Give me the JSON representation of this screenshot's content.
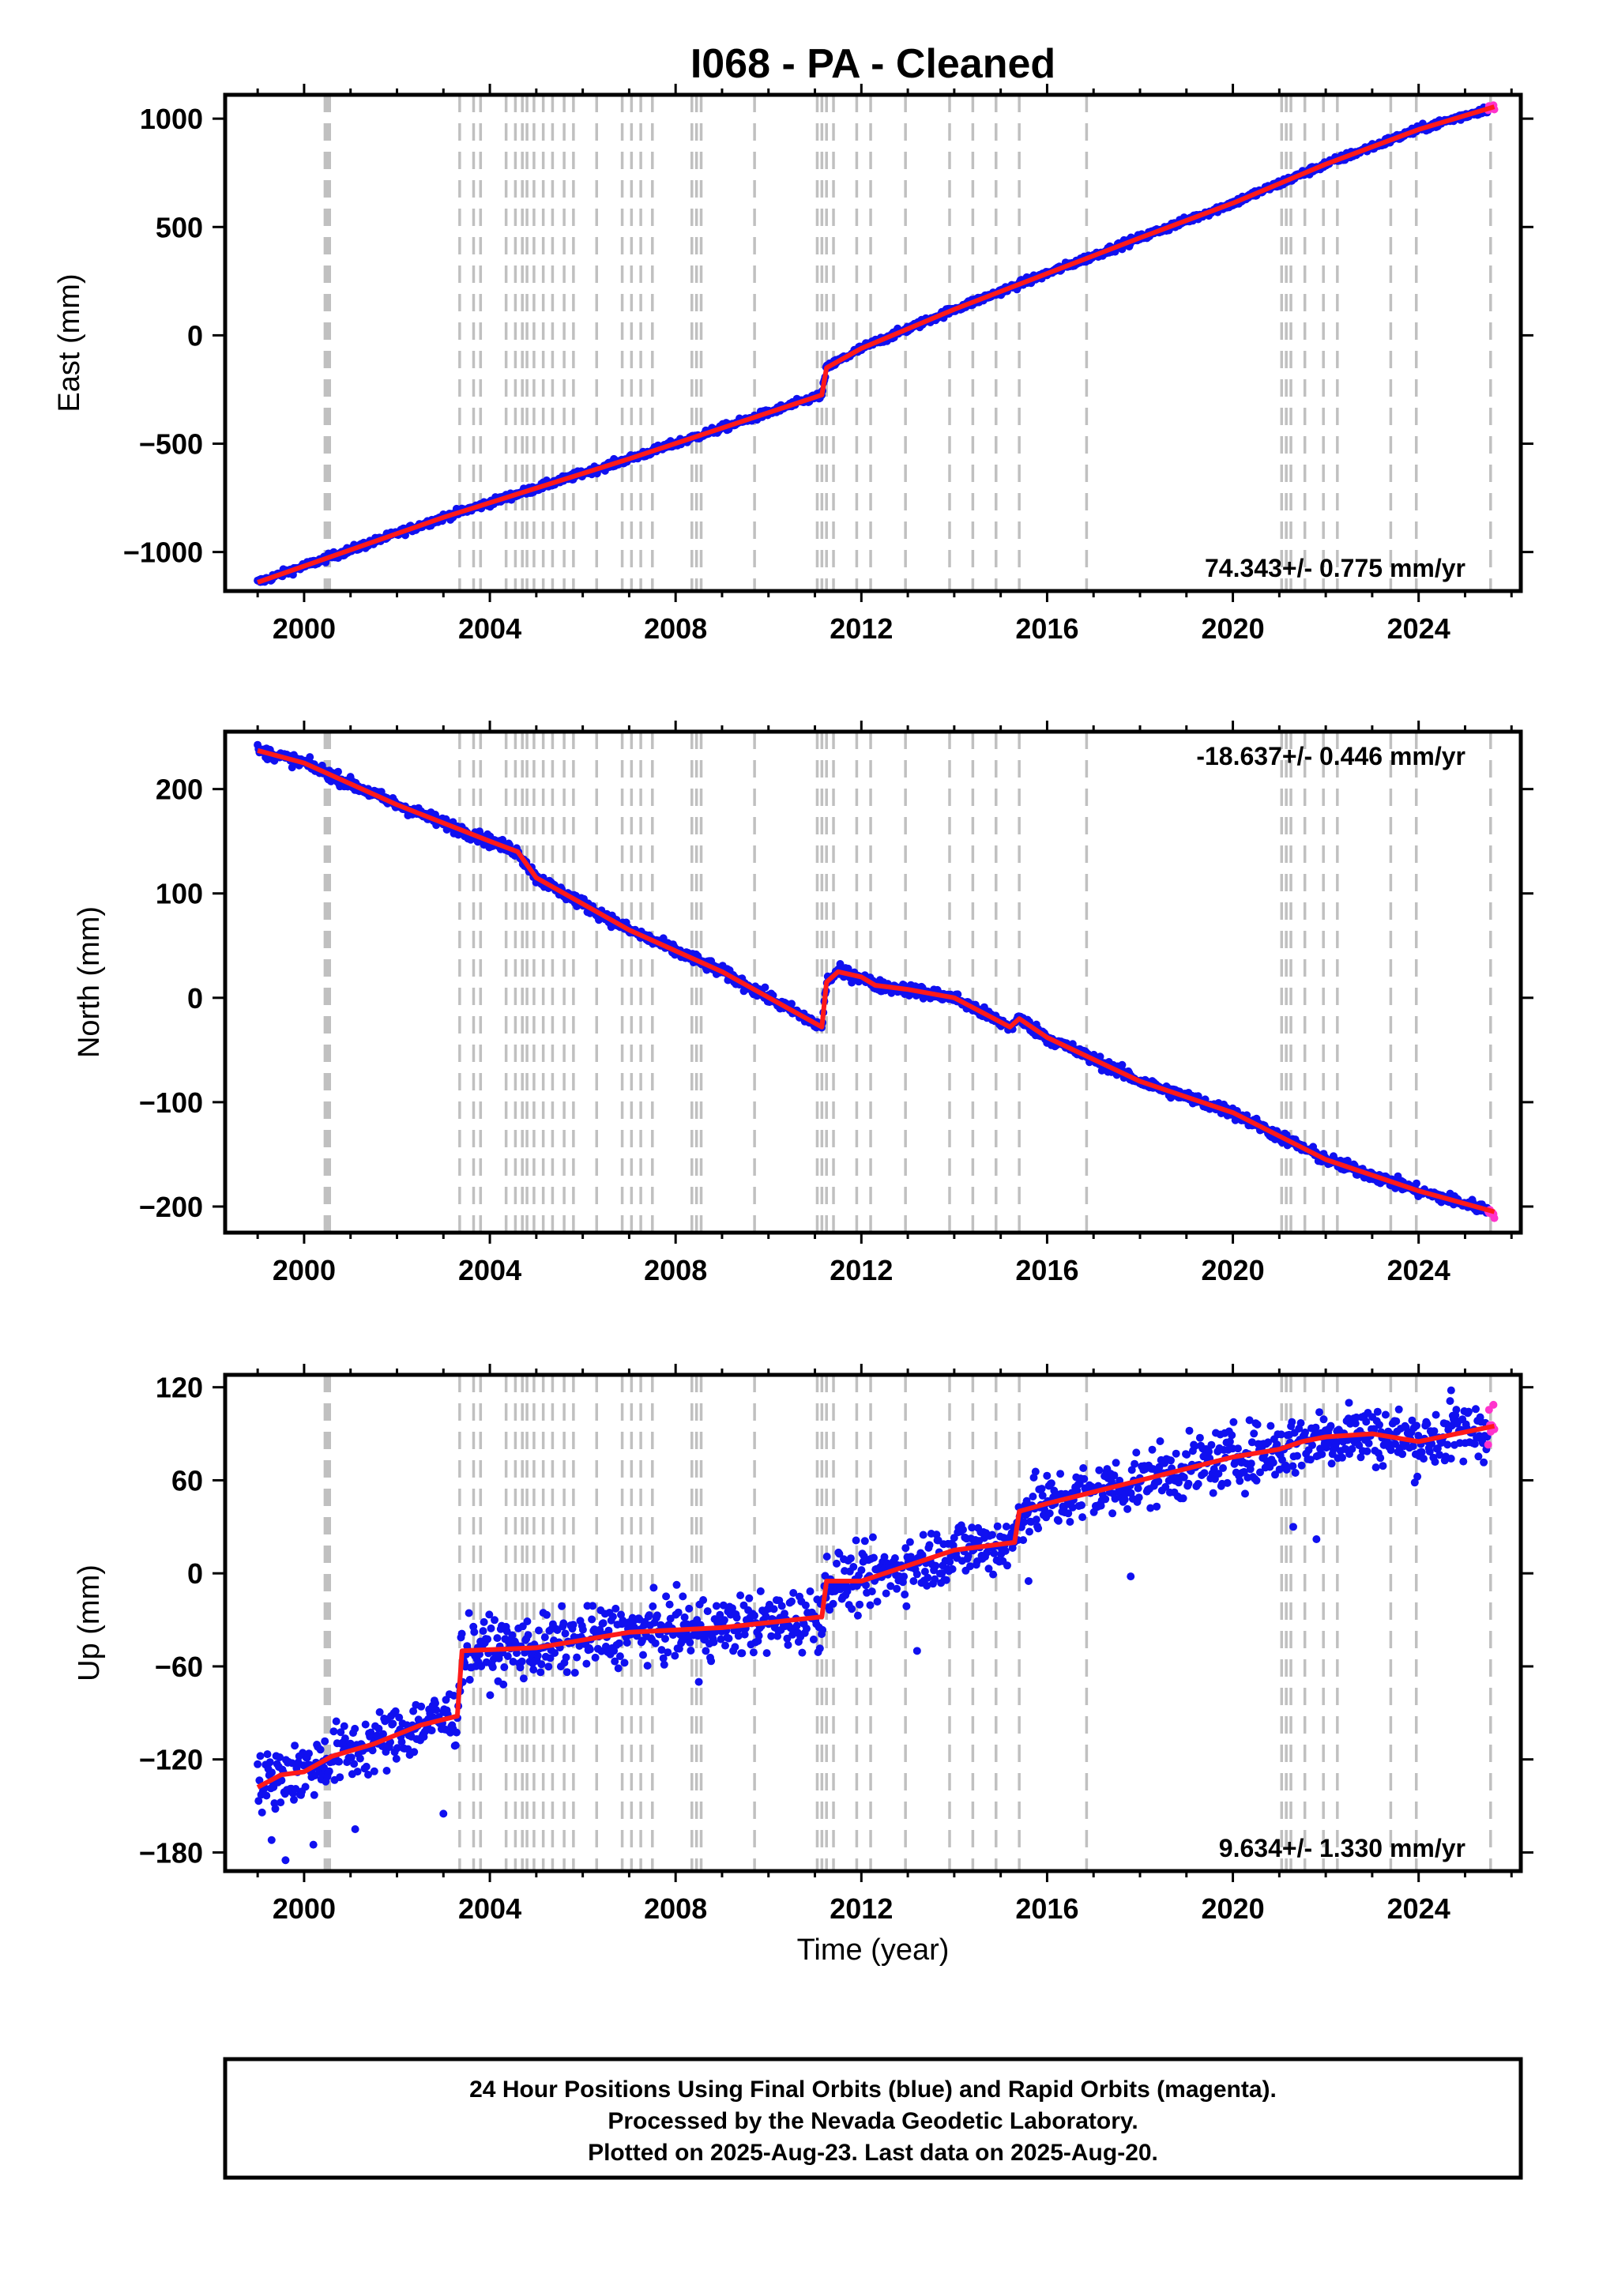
{
  "colors": {
    "final_orbits": "#1010f0",
    "rapid_orbits": "#ff33cc",
    "fit": "#ff1a1a",
    "event_lines": "#c0c0c0",
    "frame": "#000000"
  },
  "chart_data": {
    "type": "scatter",
    "title": "I068  - PA - Cleaned",
    "xlabel": "Time (year)",
    "xlim": [
      1998.3,
      2026.2
    ],
    "xticks": [
      2000,
      2004,
      2008,
      2012,
      2016,
      2020,
      2024
    ],
    "data_start": 1999.0,
    "last_data": 2025.63,
    "event_lines": [
      2000.45,
      2000.5,
      2000.55,
      2003.35,
      2003.65,
      2003.8,
      2004.35,
      2004.55,
      2004.7,
      2004.8,
      2004.95,
      2005.15,
      2005.35,
      2005.6,
      2005.8,
      2006.3,
      2006.85,
      2007.05,
      2007.25,
      2007.5,
      2008.35,
      2008.45,
      2008.55,
      2009.7,
      2011.05,
      2011.15,
      2011.25,
      2011.4,
      2011.9,
      2012.2,
      2012.95,
      2013.9,
      2014.4,
      2014.9,
      2015.4,
      2016.85,
      2021.05,
      2021.15,
      2021.25,
      2021.55,
      2021.95,
      2022.25,
      2023.4,
      2023.95,
      2025.55
    ],
    "panels": [
      {
        "id": "east",
        "ylabel": "East (mm)",
        "ylim": [
          -1180,
          1110
        ],
        "yticks": [
          1000,
          500,
          0,
          -500,
          -1000
        ],
        "rate_label": "74.343+/- 0.775 mm/yr",
        "rate_position": "bottom-right",
        "trend": [
          [
            1999.0,
            -1140
          ],
          [
            2003.0,
            -840
          ],
          [
            2007.0,
            -570
          ],
          [
            2011.15,
            -275
          ],
          [
            2011.25,
            -150
          ],
          [
            2012.0,
            -60
          ],
          [
            2014.0,
            120
          ],
          [
            2016.0,
            285
          ],
          [
            2018.0,
            450
          ],
          [
            2020.0,
            610
          ],
          [
            2022.0,
            790
          ],
          [
            2024.0,
            950
          ],
          [
            2025.63,
            1055
          ]
        ],
        "scatter": 12,
        "outliers": []
      },
      {
        "id": "north",
        "ylabel": "North (mm)",
        "ylim": [
          -225,
          255
        ],
        "yticks": [
          200,
          100,
          0,
          -100,
          -200
        ],
        "rate_label": "-18.637+/- 0.446 mm/yr",
        "rate_position": "top-right",
        "trend": [
          [
            1999.0,
            237
          ],
          [
            2000.0,
            225
          ],
          [
            2002.0,
            185
          ],
          [
            2004.0,
            150
          ],
          [
            2004.6,
            140
          ],
          [
            2005.0,
            115
          ],
          [
            2007.0,
            65
          ],
          [
            2009.0,
            25
          ],
          [
            2011.15,
            -28
          ],
          [
            2011.25,
            15
          ],
          [
            2011.5,
            25
          ],
          [
            2012.0,
            20
          ],
          [
            2012.3,
            12
          ],
          [
            2013.0,
            8
          ],
          [
            2014.0,
            0
          ],
          [
            2015.2,
            -28
          ],
          [
            2015.4,
            -20
          ],
          [
            2016.0,
            -38
          ],
          [
            2018.0,
            -80
          ],
          [
            2020.0,
            -110
          ],
          [
            2022.0,
            -155
          ],
          [
            2024.0,
            -185
          ],
          [
            2025.63,
            -205
          ]
        ],
        "scatter": 4,
        "outliers": []
      },
      {
        "id": "up",
        "ylabel": "Up (mm)",
        "ylim": [
          -192,
          128
        ],
        "yticks": [
          120,
          60,
          0,
          -60,
          -120,
          -180
        ],
        "rate_label": "9.634+/- 1.330 mm/yr",
        "rate_position": "bottom-right",
        "trend": [
          [
            1999.0,
            -138
          ],
          [
            1999.5,
            -130
          ],
          [
            2000.0,
            -128
          ],
          [
            2000.6,
            -118
          ],
          [
            2001.5,
            -110
          ],
          [
            2002.5,
            -98
          ],
          [
            2003.3,
            -92
          ],
          [
            2003.4,
            -50
          ],
          [
            2005.0,
            -48
          ],
          [
            2007.0,
            -38
          ],
          [
            2009.0,
            -35
          ],
          [
            2011.15,
            -28
          ],
          [
            2011.25,
            -5
          ],
          [
            2012.0,
            -5
          ],
          [
            2013.0,
            5
          ],
          [
            2014.0,
            15
          ],
          [
            2015.3,
            20
          ],
          [
            2015.4,
            40
          ],
          [
            2016.0,
            45
          ],
          [
            2018.0,
            60
          ],
          [
            2020.0,
            75
          ],
          [
            2021.0,
            80
          ],
          [
            2021.5,
            85
          ],
          [
            2022.0,
            88
          ],
          [
            2023.0,
            90
          ],
          [
            2024.0,
            85
          ],
          [
            2025.63,
            95
          ]
        ],
        "scatter": 14,
        "outliers": [
          [
            1999.3,
            -172
          ],
          [
            1999.6,
            -185
          ],
          [
            2000.2,
            -175
          ],
          [
            2001.1,
            -165
          ],
          [
            2003.0,
            -155
          ],
          [
            2017.8,
            -2
          ],
          [
            2021.8,
            22
          ],
          [
            2015.6,
            -5
          ],
          [
            2021.3,
            30
          ],
          [
            2022.5,
            110
          ],
          [
            2024.7,
            118
          ],
          [
            2013.2,
            -50
          ],
          [
            2008.5,
            -70
          ]
        ]
      }
    ]
  },
  "footer": {
    "line1": "24 Hour Positions Using Final Orbits (blue) and Rapid Orbits (magenta).",
    "line2": "Processed by the Nevada Geodetic Laboratory.",
    "line3": "Plotted on 2025-Aug-23. Last data on 2025-Aug-20."
  }
}
